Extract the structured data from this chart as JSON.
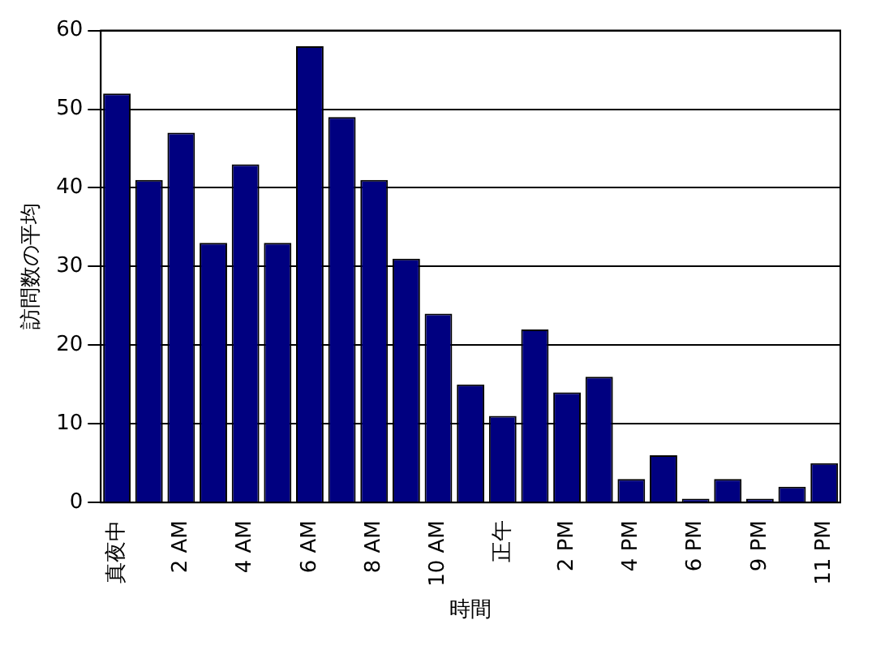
{
  "chart_data": {
    "type": "bar",
    "xlabel": "時間",
    "ylabel": "訪問数の平均",
    "categories": [
      "真夜中",
      null,
      "2 AM",
      null,
      "4 AM",
      null,
      "6 AM",
      null,
      "8 AM",
      null,
      "10 AM",
      null,
      "正午",
      null,
      "2 PM",
      null,
      "4 PM",
      null,
      "6 PM",
      null,
      "9 PM",
      null,
      "11 PM"
    ],
    "values": [
      52,
      41,
      47,
      33,
      43,
      33,
      58,
      49,
      41,
      31,
      24,
      15,
      11,
      22,
      14,
      16,
      3,
      6,
      0.5,
      3,
      0.5,
      2,
      5
    ],
    "color": "#000080",
    "ylim": [
      0,
      60
    ],
    "yticks": [
      0,
      10,
      20,
      30,
      40,
      50,
      60
    ],
    "grid": "y"
  }
}
